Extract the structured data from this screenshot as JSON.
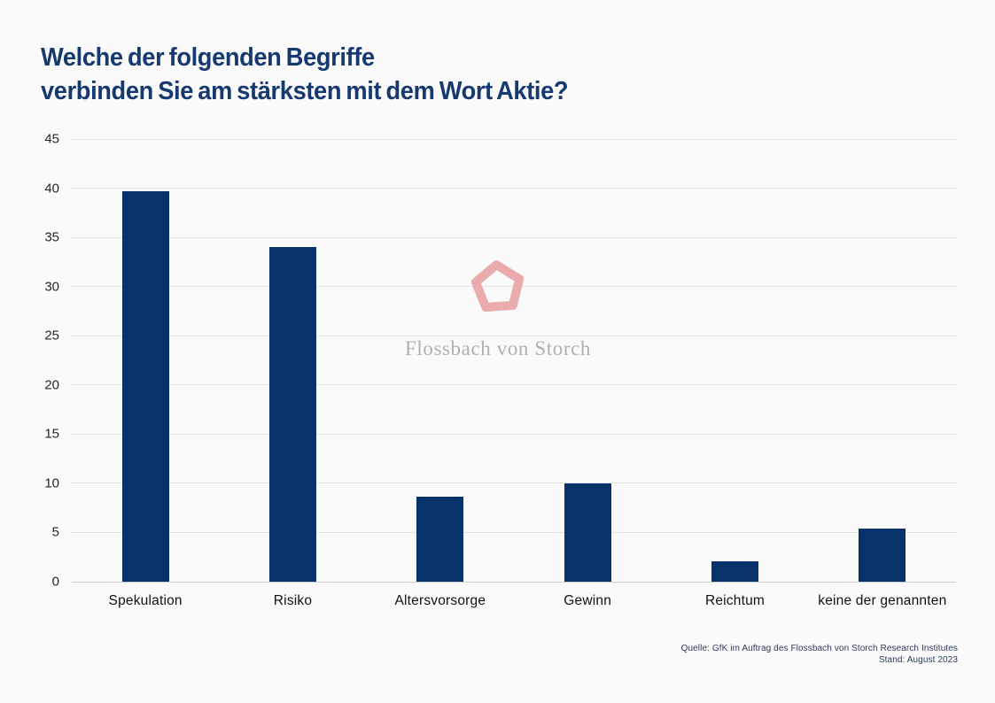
{
  "title": {
    "line1": "Welche der folgenden Begriffe",
    "line2": "verbinden Sie am stärksten mit dem Wort Aktie?"
  },
  "chart_data": {
    "type": "bar",
    "title": "Welche der folgenden Begriffe verbinden Sie am stärksten mit dem Wort Aktie?",
    "categories": [
      "Spekulation",
      "Risiko",
      "Altersvorsorge",
      "Gewinn",
      "Reichtum",
      "keine der genannten"
    ],
    "values": [
      39.7,
      34.0,
      8.6,
      10.0,
      2.1,
      5.4
    ],
    "xlabel": "",
    "ylabel": "",
    "ylim": [
      0,
      45
    ],
    "yticks": [
      0,
      5,
      10,
      15,
      20,
      25,
      30,
      35,
      40,
      45
    ],
    "grid": "horizontal",
    "legend": "none",
    "bar_color": "#07336a"
  },
  "watermark": {
    "brand_text": "Flossbach von Storch",
    "logo_icon": "pentagon-signet-icon",
    "logo_color": "#e9abab",
    "text_color": "#b1afaf"
  },
  "source": {
    "line1": "Quelle: GfK im Auftrag des Flossbach von Storch Research Institutes",
    "line2": "Stand: August 2023"
  },
  "colors": {
    "background": "#fafafa",
    "bar": "#07336a",
    "title": "#16396f",
    "grid": "#e1e1e1",
    "axis_line": "#cfcfcf",
    "tick_text": "#262626",
    "label_text": "#111111",
    "source_text": "#2a3a5f",
    "watermark_text": "#b1afaf"
  }
}
